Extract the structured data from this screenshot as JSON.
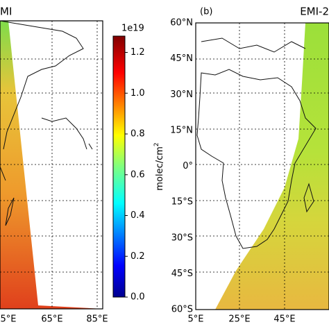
{
  "panels": [
    {
      "label": "MI",
      "xticks": [
        "5°E",
        "65°E",
        "85°E"
      ]
    },
    {
      "letter": "(b)",
      "label": "EMI-2",
      "xticks": [
        "5°E",
        "25°E",
        "45°E"
      ],
      "yticks": [
        "60°N",
        "45°N",
        "30°N",
        "15°N",
        "0°",
        "15°S",
        "30°S",
        "45°S",
        "60°S"
      ]
    }
  ],
  "colorbar": {
    "exponent": "1e19",
    "label": "molec/cm",
    "label_sup": "2",
    "lim": [
      0,
      1.28
    ],
    "ticks": [
      {
        "value": 0,
        "label": "0.0"
      },
      {
        "value": 0.2,
        "label": "0.2"
      },
      {
        "value": 0.4,
        "label": "0.4"
      },
      {
        "value": 0.6,
        "label": "0.6"
      },
      {
        "value": 0.8,
        "label": "0.8"
      },
      {
        "value": 1,
        "label": "1.0"
      },
      {
        "value": 1.2,
        "label": "1.2"
      }
    ]
  }
}
